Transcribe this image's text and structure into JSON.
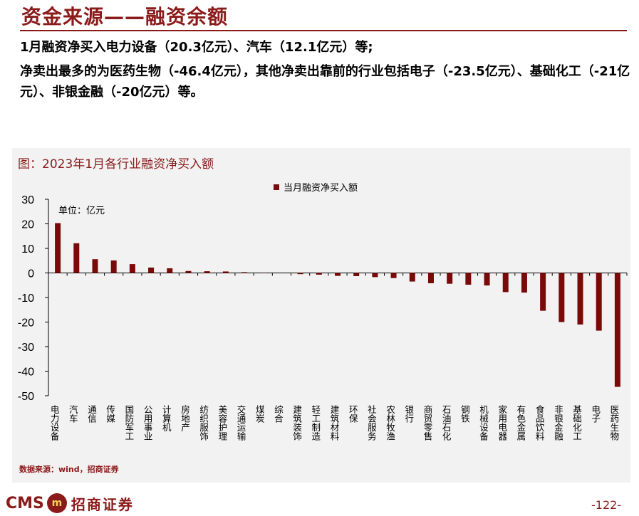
{
  "header": {
    "title": "资金来源——融资余额"
  },
  "text": {
    "p1": "1月融资净买入电力设备（20.3亿元）、汽车（12.1亿元）等;",
    "p2": "净卖出最多的为医药生物（-46.4亿元），其他净卖出靠前的行业包括电子（-23.5亿元）、基础化工（-21亿元）、非银金融（-20亿元）等。"
  },
  "chart_data": {
    "type": "bar",
    "title": "图：2023年1月各行业融资净买入额",
    "unit_label": "单位：亿元",
    "legend": "当月融资净买入额",
    "legend_position": "top-right",
    "ylim": [
      -50,
      30
    ],
    "yticks": [
      30,
      20,
      10,
      0,
      -10,
      -20,
      -30,
      -40,
      -50
    ],
    "grid": false,
    "color": "#7a0a0a",
    "categories": [
      "电力设备",
      "汽车",
      "通信",
      "传媒",
      "国防军工",
      "公用事业",
      "计算机",
      "房地产",
      "纺织服饰",
      "美容护理",
      "交通运输",
      "煤炭",
      "综合",
      "建筑装饰",
      "轻工制造",
      "建筑材料",
      "环保",
      "社会服务",
      "农林牧渔",
      "银行",
      "商贸零售",
      "石油石化",
      "钢铁",
      "机械设备",
      "家用电器",
      "有色金属",
      "食品饮料",
      "非银金融",
      "基础化工",
      "电子",
      "医药生物"
    ],
    "values": [
      20.3,
      12.1,
      5.6,
      5.1,
      3.6,
      2.2,
      1.9,
      0.8,
      0.7,
      0.6,
      0.3,
      0.1,
      0.0,
      -0.5,
      -0.7,
      -1.2,
      -1.3,
      -1.7,
      -2.1,
      -3.5,
      -4.2,
      -4.4,
      -4.8,
      -5.1,
      -7.8,
      -8.0,
      -15.4,
      -20.0,
      -21.0,
      -23.5,
      -46.4
    ]
  },
  "footer": {
    "source": "数据来源：wind，招商证券",
    "logo_en": "CMS",
    "logo_mark": "m",
    "logo_cn": "招商证券",
    "page": "-122-"
  }
}
